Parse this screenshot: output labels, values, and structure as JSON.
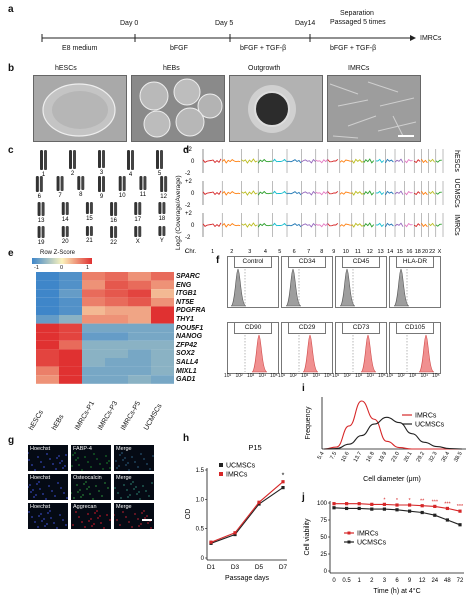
{
  "panels": {
    "a": "a",
    "b": "b",
    "c": "c",
    "d": "d",
    "e": "e",
    "f": "f",
    "g": "g",
    "h": "h",
    "i": "i",
    "j": "j"
  },
  "timeline": {
    "days": [
      "Day 0",
      "Day 5",
      "Day14"
    ],
    "separation": [
      "Separation",
      "Passaged 5 times"
    ],
    "stages": [
      "E8 medium",
      "bFGF",
      "bFGF + TGF-β",
      "bFGF + TGF-β"
    ],
    "end": "IMRCs"
  },
  "photos": [
    "hESCs",
    "hEBs",
    "Outgrowth",
    "IMRCs"
  ],
  "karyotype": [
    "1",
    "2",
    "3",
    "4",
    "5",
    "6",
    "7",
    "8",
    "9",
    "10",
    "11",
    "12",
    "13",
    "14",
    "15",
    "16",
    "17",
    "18",
    "19",
    "20",
    "21",
    "22",
    "X",
    "Y"
  ],
  "cnv": {
    "tracks": [
      "hESCs",
      "UCMSCs",
      "IMRCs"
    ],
    "ticks": [
      "+2",
      "0",
      "-2"
    ],
    "ylabel": "Log2 (Coverage/Average)",
    "chr_label": "Chr.",
    "chr": [
      "1",
      "2",
      "3",
      "4",
      "5",
      "6",
      "7",
      "8",
      "9",
      "10",
      "11",
      "12",
      "13",
      "14",
      "15",
      "16",
      "18",
      "20",
      "22",
      "X",
      "Y"
    ]
  },
  "heatmap": {
    "legend_title": "Row Z-Score",
    "legend_ticks": [
      "-1",
      "0",
      "1"
    ],
    "genes": [
      "SPARC",
      "ENG",
      "ITGB1",
      "NT5E",
      "PDGFRA",
      "THY1",
      "POU5F1",
      "NANOG",
      "ZFP42",
      "SOX2",
      "SALL4",
      "MIXL1",
      "GAD1"
    ],
    "samples": [
      "hESCs",
      "hEBs",
      "IMRCs-P1",
      "IMRCs-P3",
      "IMRCs-P5",
      "UCMSCs"
    ],
    "colors": [
      "#3f86c9",
      "#e03131",
      "#fbf3bd"
    ]
  },
  "flow": {
    "markers": [
      "Control",
      "CD34",
      "CD45",
      "HLA-DR",
      "CD90",
      "CD29",
      "CD73",
      "CD105"
    ],
    "xticks": [
      "10¹",
      "10²",
      "10³",
      "10⁴",
      "10⁵"
    ],
    "colors": [
      "#9e9e9e",
      "#f09090"
    ]
  },
  "stains": [
    [
      "Hoechst",
      "FABP-4",
      "Merge"
    ],
    [
      "Hoechst",
      "Osteocalcin",
      "Merge"
    ],
    [
      "Hoechst",
      "Aggrecan",
      "Merge"
    ]
  ],
  "chart_data": [
    {
      "type": "line",
      "title": "P15",
      "xlabel": "Passage days",
      "ylabel": "OD",
      "categories": [
        "D1",
        "D3",
        "D5",
        "D7"
      ],
      "ylim": [
        0,
        1.5
      ],
      "yticks": [
        "0",
        "0.5",
        "1.0",
        "1.5"
      ],
      "series": [
        {
          "name": "UCMSCs",
          "color": "#222222",
          "values": [
            0.25,
            0.4,
            0.92,
            1.2
          ]
        },
        {
          "name": "IMRCs",
          "color": "#d62728",
          "values": [
            0.27,
            0.43,
            0.95,
            1.3
          ]
        }
      ],
      "annotations": [
        "*"
      ]
    },
    {
      "type": "line",
      "xlabel": "Cell diameter (μm)",
      "ylabel": "Frequency",
      "categories": [
        "5.4",
        "7.5",
        "10.6",
        "13.7",
        "16.8",
        "19.9",
        "23.0",
        "26.1",
        "29.2",
        "32.3",
        "35.4",
        "38.5"
      ],
      "series": [
        {
          "name": "IMRCs",
          "color": "#d62728",
          "values": [
            0.0,
            0.04,
            0.48,
            1.0,
            0.62,
            0.16,
            0.03,
            0.0,
            0.0,
            0.0,
            0.0,
            0.0
          ]
        },
        {
          "name": "UCMSCs",
          "color": "#222222",
          "values": [
            0.0,
            0.01,
            0.1,
            0.28,
            0.52,
            0.66,
            0.55,
            0.32,
            0.14,
            0.05,
            0.01,
            0.0
          ]
        }
      ]
    },
    {
      "type": "line",
      "xlabel": "Time (h) at 4°C",
      "ylabel": "Cell viability",
      "categories": [
        "0",
        "0.5",
        "1",
        "2",
        "3",
        "6",
        "9",
        "12",
        "24",
        "48",
        "72"
      ],
      "ylim": [
        0,
        100
      ],
      "yticks": [
        "0",
        "25",
        "50",
        "75",
        "100"
      ],
      "series": [
        {
          "name": "IMRCs",
          "color": "#d62728",
          "values": [
            99,
            99,
            99,
            98,
            98,
            97,
            97,
            96,
            95,
            92,
            88
          ]
        },
        {
          "name": "UCMSCs",
          "color": "#222222",
          "values": [
            93,
            92,
            92,
            91,
            91,
            90,
            88,
            86,
            82,
            75,
            68
          ]
        }
      ],
      "annotations": [
        "*",
        "*",
        "*",
        "**",
        "***",
        "***",
        "***"
      ]
    }
  ]
}
